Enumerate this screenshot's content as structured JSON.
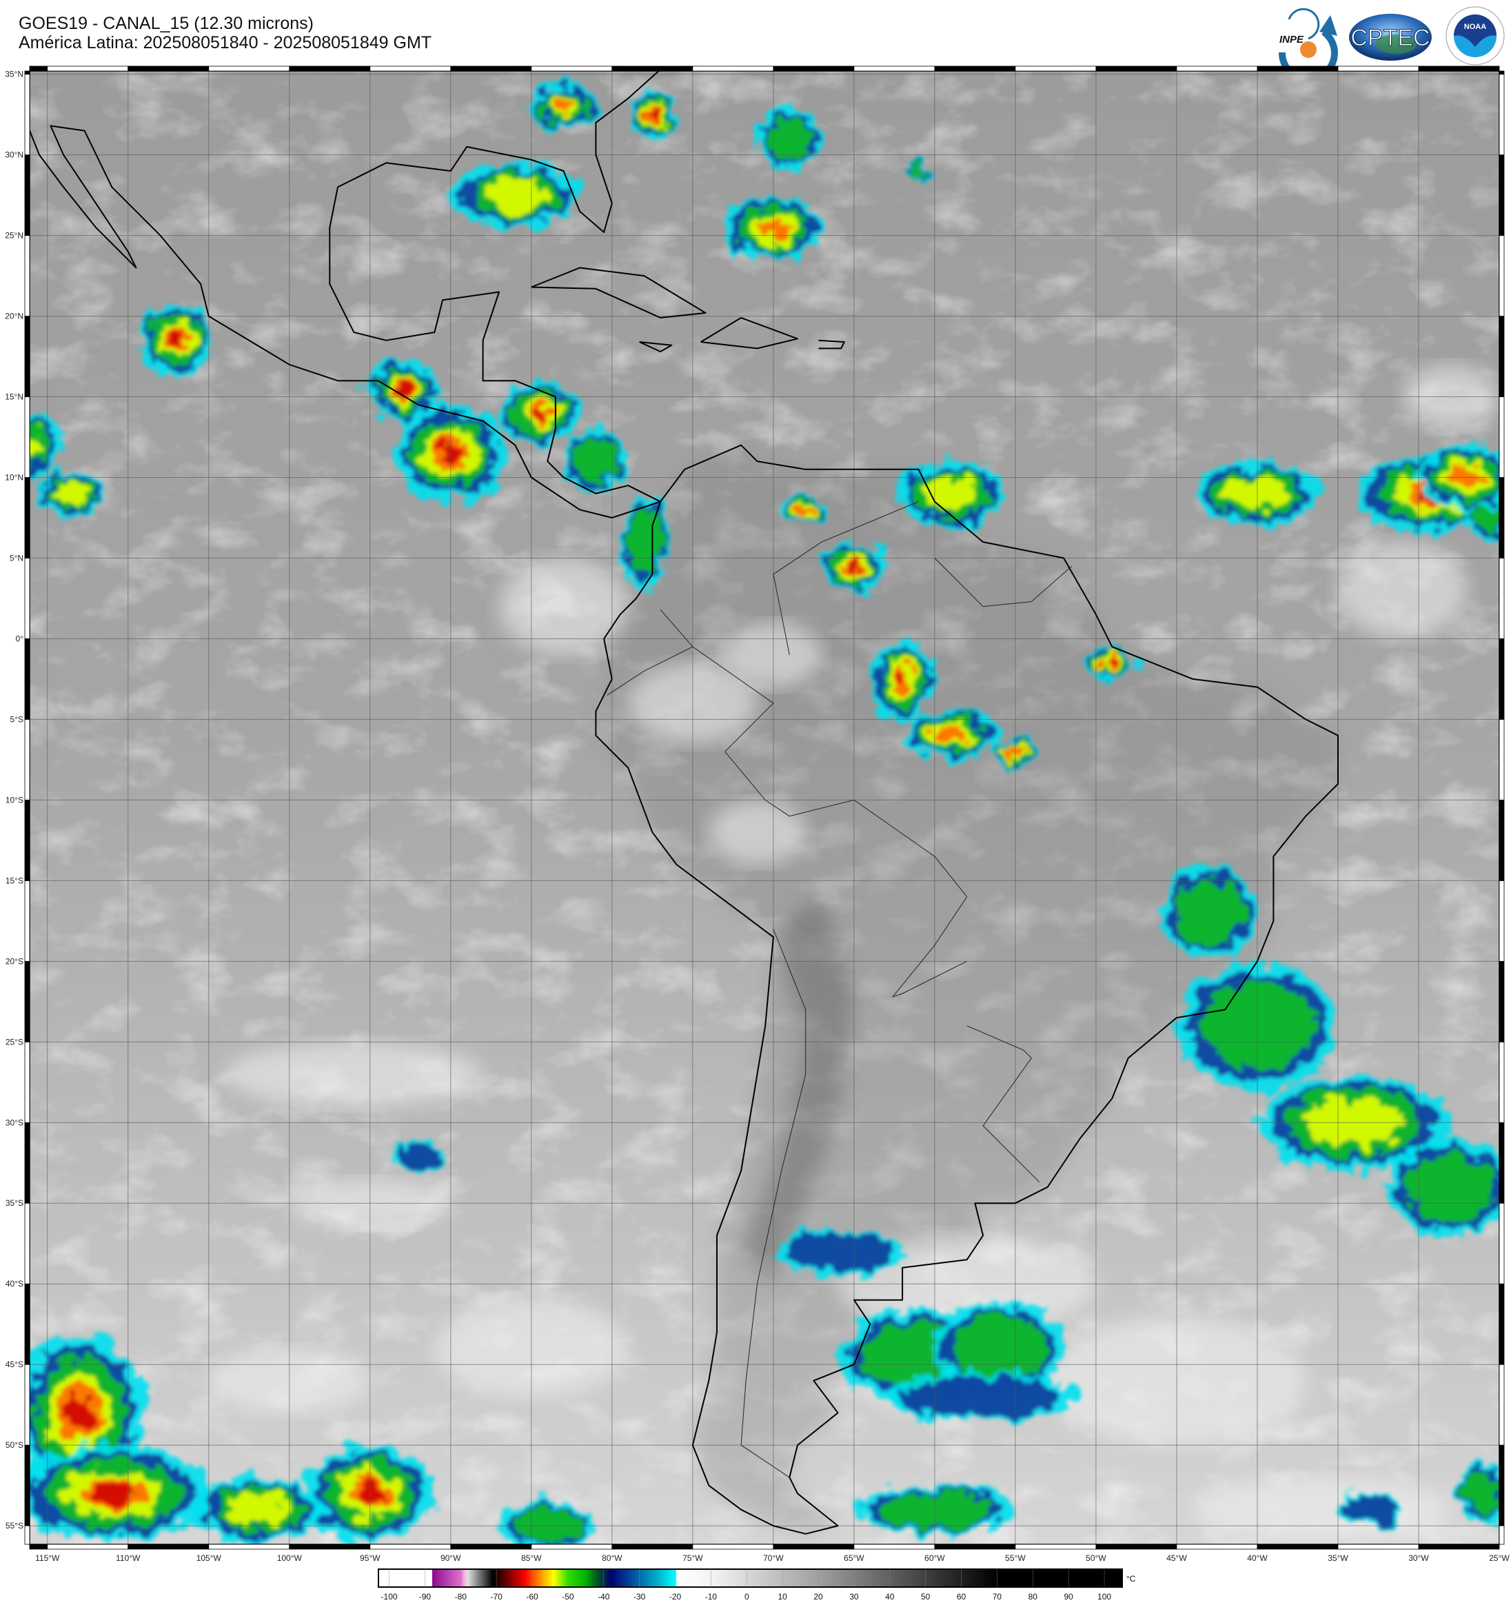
{
  "header": {
    "title": "GOES19 - CANAL_15 (12.30 microns)",
    "subtitle": "América Latina: 202508051840 - 202508051849 GMT"
  },
  "logos": {
    "inpe": "INPE",
    "cptec": "CPTEC",
    "noaa": "NOAA",
    "noaa_ring": "NATIONAL OCEANIC AND ATMOSPHERIC ADMINISTRATION · U.S. DEPARTMENT OF COMMERCE"
  },
  "map": {
    "lat_labels": [
      "35°N",
      "30°N",
      "25°N",
      "20°N",
      "15°N",
      "10°N",
      "5°N",
      "0°",
      "5°S",
      "10°S",
      "15°S",
      "20°S",
      "25°S",
      "30°S",
      "35°S",
      "40°S",
      "45°S",
      "50°S",
      "55°S"
    ],
    "lat_values": [
      35,
      30,
      25,
      20,
      15,
      10,
      5,
      0,
      -5,
      -10,
      -15,
      -20,
      -25,
      -30,
      -35,
      -40,
      -45,
      -50,
      -55
    ],
    "lon_labels": [
      "115°W",
      "110°W",
      "105°W",
      "100°W",
      "95°W",
      "90°W",
      "85°W",
      "80°W",
      "75°W",
      "70°W",
      "65°W",
      "60°W",
      "55°W",
      "50°W",
      "45°W",
      "40°W",
      "35°W",
      "30°W",
      "25°W"
    ],
    "lon_values": [
      -115,
      -110,
      -105,
      -100,
      -95,
      -90,
      -85,
      -80,
      -75,
      -70,
      -65,
      -60,
      -55,
      -50,
      -45,
      -40,
      -35,
      -30,
      -25
    ],
    "extent": {
      "lon": [
        -116.1,
        -25
      ],
      "lat": [
        -56.15,
        35.2
      ]
    }
  },
  "colorbar": {
    "unit": "°C",
    "range": [
      -103,
      105
    ],
    "ticks": [
      "-100",
      "-90",
      "-80",
      "-70",
      "-60",
      "-50",
      "-40",
      "-30",
      "-20",
      "-10",
      "0",
      "10",
      "20",
      "30",
      "40",
      "50",
      "60",
      "70",
      "80",
      "90",
      "100"
    ],
    "tick_values": [
      -100,
      -90,
      -80,
      -70,
      -60,
      -50,
      -40,
      -30,
      -20,
      -10,
      0,
      10,
      20,
      30,
      40,
      50,
      60,
      70,
      80,
      90,
      100
    ],
    "stops": [
      [
        -103,
        "#ffffff"
      ],
      [
        -88,
        "#ffffff"
      ],
      [
        -88,
        "#8a0a8a"
      ],
      [
        -80,
        "#e070d0"
      ],
      [
        -79,
        "#f8b0e0"
      ],
      [
        -78,
        "#e0e0e0"
      ],
      [
        -72,
        "#202020"
      ],
      [
        -71,
        "#000000"
      ],
      [
        -66,
        "#8a0000"
      ],
      [
        -62,
        "#ff0000"
      ],
      [
        -58,
        "#ff8c00"
      ],
      [
        -54,
        "#ffff00"
      ],
      [
        -50,
        "#30e000"
      ],
      [
        -45,
        "#00b000"
      ],
      [
        -42,
        "#005a20"
      ],
      [
        -38,
        "#000070"
      ],
      [
        -32,
        "#0050a0"
      ],
      [
        -26,
        "#00a0c0"
      ],
      [
        -20,
        "#00ffff"
      ],
      [
        -19.5,
        "#ffffff"
      ],
      [
        -10,
        "#f4f4f4"
      ],
      [
        0,
        "#d8d8d8"
      ],
      [
        20,
        "#a0a0a0"
      ],
      [
        40,
        "#606060"
      ],
      [
        60,
        "#202020"
      ],
      [
        70,
        "#000000"
      ],
      [
        105,
        "#000000"
      ]
    ]
  }
}
